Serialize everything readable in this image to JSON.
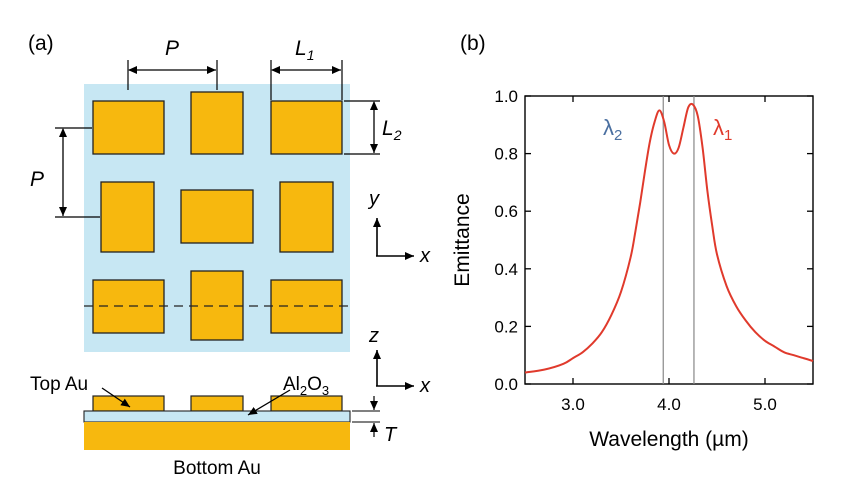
{
  "panel_a": {
    "label": "(a)",
    "dim_period": "P",
    "dim_L1": "L",
    "dim_L1_sub": "1",
    "dim_L2": "L",
    "dim_L2_sub": "2",
    "axis_y": "y",
    "axis_x": "x",
    "axis_z": "z",
    "axis_x2": "x",
    "top_label": "Top Au",
    "oxide_label": "Al",
    "oxide_sub": "2",
    "oxide_label_2": "O",
    "oxide_sub_2": "3",
    "thickness_label": "T",
    "bottom_label": "Bottom Au",
    "colors": {
      "substrate": "#c7e7f3",
      "gold": "#f7b80e",
      "outline": "#222222"
    }
  },
  "panel_b": {
    "label": "(b)",
    "lambda1": "λ",
    "lambda1_sub": "1",
    "lambda2": "λ",
    "lambda2_sub": "2",
    "colors": {
      "curve": "#e03a2c",
      "lambda1": "#e03a2c",
      "lambda2": "#4a6fa0",
      "markers": "#888888"
    }
  },
  "chart_data": {
    "type": "line",
    "xlabel": "Wavelength (µm)",
    "ylabel": "Emittance",
    "xlim": [
      2.5,
      5.5
    ],
    "ylim": [
      0.0,
      1.0
    ],
    "xticks": [
      "3.0",
      "4.0",
      "5.0"
    ],
    "xtick_values": [
      3.0,
      4.0,
      5.0
    ],
    "yticks": [
      "0.0",
      "0.2",
      "0.4",
      "0.6",
      "0.8",
      "1.0"
    ],
    "ytick_values": [
      0.0,
      0.2,
      0.4,
      0.6,
      0.8,
      1.0
    ],
    "grid": false,
    "series": [
      {
        "x": [
          2.5,
          2.7,
          2.9,
          3.0,
          3.1,
          3.2,
          3.3,
          3.4,
          3.5,
          3.6,
          3.65,
          3.7,
          3.75,
          3.8,
          3.85,
          3.9,
          3.95,
          4.0,
          4.05,
          4.1,
          4.15,
          4.2,
          4.25,
          4.3,
          4.35,
          4.4,
          4.45,
          4.5,
          4.6,
          4.7,
          4.8,
          4.9,
          5.0,
          5.1,
          5.2,
          5.3,
          5.4,
          5.5
        ],
        "y": [
          0.04,
          0.05,
          0.07,
          0.09,
          0.11,
          0.14,
          0.18,
          0.24,
          0.32,
          0.44,
          0.53,
          0.63,
          0.74,
          0.84,
          0.91,
          0.95,
          0.91,
          0.83,
          0.8,
          0.82,
          0.89,
          0.96,
          0.97,
          0.93,
          0.82,
          0.67,
          0.55,
          0.45,
          0.34,
          0.27,
          0.22,
          0.18,
          0.15,
          0.13,
          0.11,
          0.1,
          0.09,
          0.08
        ]
      }
    ],
    "vlines": [
      3.94,
      4.26
    ]
  }
}
